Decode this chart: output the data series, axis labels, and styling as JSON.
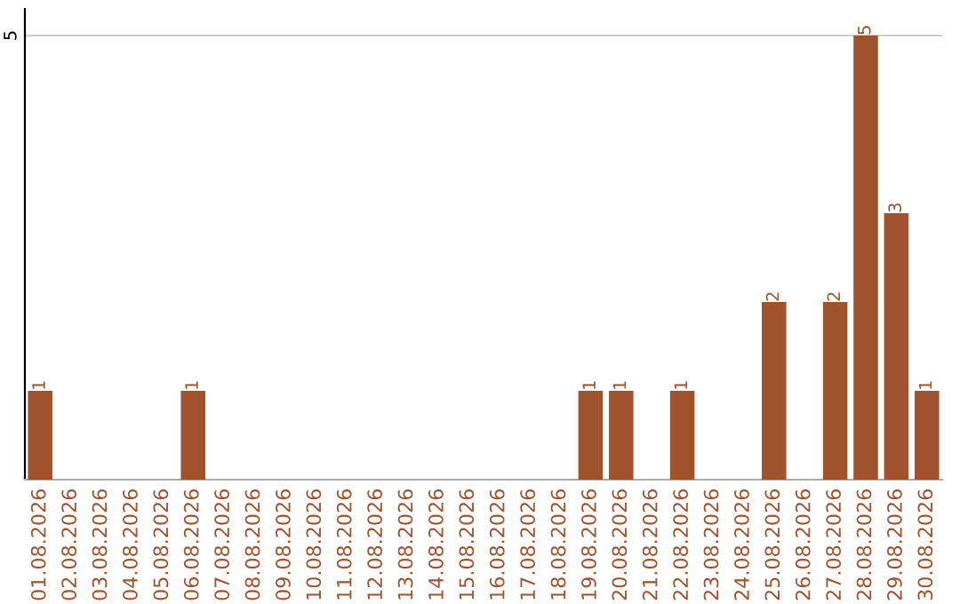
{
  "chart_data": {
    "type": "bar",
    "categories": [
      "01.08.2026",
      "02.08.2026",
      "03.08.2026",
      "04.08.2026",
      "05.08.2026",
      "06.08.2026",
      "07.08.2026",
      "08.08.2026",
      "09.08.2026",
      "10.08.2026",
      "11.08.2026",
      "12.08.2026",
      "13.08.2026",
      "14.08.2026",
      "15.08.2026",
      "16.08.2026",
      "17.08.2026",
      "18.08.2026",
      "19.08.2026",
      "20.08.2026",
      "21.08.2026",
      "22.08.2026",
      "23.08.2026",
      "24.08.2026",
      "25.08.2026",
      "26.08.2026",
      "27.08.2026",
      "28.08.2026",
      "29.08.2026",
      "30.08.2026"
    ],
    "values": [
      1,
      0,
      0,
      0,
      0,
      1,
      0,
      0,
      0,
      0,
      0,
      0,
      0,
      0,
      0,
      0,
      0,
      0,
      1,
      1,
      0,
      1,
      0,
      0,
      2,
      0,
      2,
      5,
      3,
      1
    ],
    "value_labels": [
      "1",
      null,
      null,
      null,
      null,
      "1",
      null,
      null,
      null,
      null,
      null,
      null,
      null,
      null,
      null,
      null,
      null,
      null,
      "1",
      "1",
      null,
      "1",
      null,
      null,
      "2",
      null,
      "2",
      "5",
      "3",
      "1"
    ],
    "color": "#a0522d",
    "ylim": [
      0,
      5.3
    ],
    "yticks": [
      5
    ],
    "grid": "y",
    "legend": false
  }
}
